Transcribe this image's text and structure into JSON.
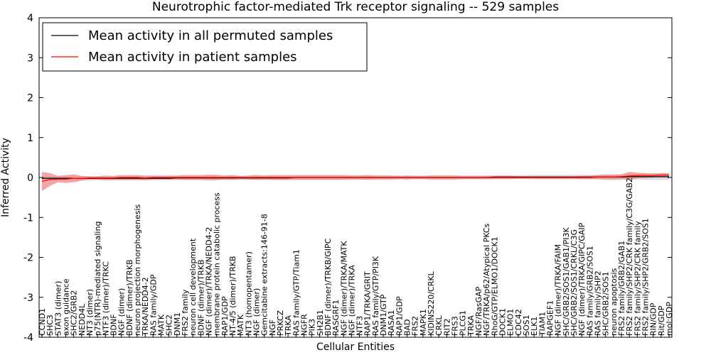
{
  "chart_data": {
    "type": "line",
    "title": "Neurotrophic factor-mediated Trk receptor signaling -- 529 samples",
    "xlabel": "Cellular Entities",
    "ylabel": "Inferred Activity",
    "ylim": [
      -4,
      4
    ],
    "yticks": [
      -4,
      -3,
      -2,
      -1,
      0,
      1,
      2,
      3,
      4
    ],
    "legend_position": "top-left",
    "colors": {
      "permuted": "#000000",
      "patient": "#ff0000",
      "band_patient": "#f08080",
      "band_permuted": "#bbbbbb"
    },
    "categories": [
      "CCND1",
      "SHC3",
      "STAT3 (dimer)",
      "axon guidance",
      "SHC2/GRB2",
      "NEDD4L",
      "NT3 (dimer)",
      "p75(NTR)-mediated signaling",
      "NTF3 (dimer)/TRKC",
      "BDNF",
      "NGF (dimer)",
      "BDNF (dimer)/TRKB",
      "neuron projection morphogenesis",
      "TRKA/NEDD4-2",
      "RAS family/GDP",
      "MATK",
      "SHC2",
      "DNM1",
      "FRS2 family",
      "neuron cell development",
      "BDNF (dimer)/TRKB",
      "NGF (dimer)/TRKA/NEDD4-2",
      "membrane protein catabolic process",
      "RAP1/GDP",
      "NT-4/5 (dimer)/TRKB",
      "MATK",
      "NT3 (homopentamer)",
      "NGF (dimer)",
      "Gemcitabine extracts:146-91-8",
      "NGF",
      "PRKCZ",
      "TRKA",
      "RAS family/GTP/Tiam1",
      "NGFR",
      "PIK3",
      "SH2B1",
      "BDNF (dimer)/TRKB/GIPC",
      "RASGRF1",
      "NGF (dimer)/TRKA/MATK",
      "NGF (dimer)/TRKA",
      "NTF3",
      "RAP1/TRKA/GRIT",
      "RAS family/GTP/PI3K",
      "DNM1/GTP",
      "RASA1",
      "RAP1/GDP",
      "BAD",
      "FRS2",
      "MAPK1",
      "KIDINS220/CRKL",
      "CRKL",
      "RIT2",
      "FRS3",
      "PLCG1",
      "TRKA",
      "NGF/RasGAP",
      "NGF/TRKA/p62/Atypical PKCs",
      "RhoG/GTP/ELMO1/DOCK1",
      "DOCK1",
      "ELMO1",
      "CDC42",
      "SOS1",
      "ELK1",
      "TIAM1",
      "RAPGEF1",
      "NGF (dimer)/TRKA/FAIM",
      "SHC/GRB2/SOS1/GAB1/PI3K",
      "SHC/GRB2/SOS1/CRKL/C3G",
      "NGF (dimer)/TRKA/GIPC/GAIP",
      "RAS family/GRB2/SOS1",
      "RAS family/SHP2",
      "SHC/GRB2/SOS1",
      "neuron apoptosis",
      "FRS2 family/GRB2/GAB1",
      "FRS2 family/SHP2/CRK family/C3G/GAB2",
      "FRS2 family/SHP2/CRK family",
      "FRS2 family/SHP2/GRB2/SOS1",
      "RIN/GDP",
      "Rit/GDP",
      "mol:GDP"
    ],
    "series": [
      {
        "name": "Mean activity in all permuted samples",
        "values": [
          -0.02,
          -0.02,
          -0.02,
          -0.02,
          -0.02,
          -0.02,
          -0.02,
          -0.02,
          -0.02,
          -0.02,
          -0.02,
          -0.02,
          -0.02,
          -0.02,
          -0.02,
          -0.02,
          -0.02,
          -0.01,
          -0.01,
          -0.01,
          -0.01,
          -0.01,
          -0.01,
          -0.01,
          -0.01,
          -0.01,
          -0.01,
          -0.01,
          -0.01,
          -0.01,
          -0.01,
          -0.01,
          0.0,
          0.0,
          0.0,
          0.0,
          0.0,
          0.0,
          0.0,
          0.0,
          0.0,
          0.0,
          0.0,
          0.0,
          0.0,
          0.0,
          0.0,
          0.0,
          0.0,
          0.0,
          0.0,
          0.0,
          0.0,
          0.0,
          0.0,
          0.0,
          0.0,
          0.01,
          0.01,
          0.01,
          0.01,
          0.01,
          0.01,
          0.01,
          0.01,
          0.01,
          0.01,
          0.01,
          0.01,
          0.01,
          0.01,
          0.01,
          0.01,
          0.01,
          0.02,
          0.02,
          0.02,
          0.02,
          0.02,
          0.02
        ]
      },
      {
        "name": "Mean activity in patient samples",
        "values": [
          -0.1,
          -0.05,
          -0.04,
          -0.04,
          -0.02,
          -0.02,
          -0.01,
          -0.01,
          -0.01,
          -0.01,
          0.0,
          0.0,
          0.0,
          -0.01,
          0.0,
          0.0,
          0.0,
          0.0,
          0.0,
          0.0,
          0.0,
          0.0,
          0.0,
          0.0,
          0.0,
          0.0,
          0.0,
          0.0,
          0.0,
          0.0,
          0.0,
          0.0,
          0.0,
          0.0,
          0.0,
          0.0,
          0.0,
          0.0,
          0.0,
          0.0,
          0.0,
          0.0,
          0.0,
          0.0,
          0.0,
          0.0,
          0.0,
          0.0,
          0.0,
          0.0,
          0.0,
          0.0,
          0.0,
          0.0,
          0.0,
          0.0,
          0.0,
          0.0,
          0.0,
          0.0,
          0.0,
          0.0,
          0.0,
          0.0,
          0.0,
          0.0,
          0.0,
          0.0,
          0.0,
          0.0,
          0.01,
          0.01,
          0.01,
          0.02,
          0.04,
          0.05,
          0.05,
          0.05,
          0.06,
          0.06
        ]
      }
    ],
    "bands": {
      "patient_halfwidth": [
        0.24,
        0.16,
        0.08,
        0.1,
        0.1,
        0.06,
        0.04,
        0.04,
        0.06,
        0.05,
        0.06,
        0.06,
        0.06,
        0.06,
        0.05,
        0.05,
        0.05,
        0.05,
        0.06,
        0.06,
        0.06,
        0.07,
        0.07,
        0.05,
        0.06,
        0.04,
        0.05,
        0.06,
        0.05,
        0.06,
        0.06,
        0.06,
        0.06,
        0.06,
        0.06,
        0.06,
        0.06,
        0.06,
        0.06,
        0.05,
        0.05,
        0.06,
        0.05,
        0.05,
        0.05,
        0.04,
        0.05,
        0.04,
        0.04,
        0.05,
        0.05,
        0.05,
        0.05,
        0.04,
        0.04,
        0.04,
        0.04,
        0.04,
        0.04,
        0.04,
        0.03,
        0.03,
        0.03,
        0.03,
        0.03,
        0.03,
        0.03,
        0.03,
        0.04,
        0.04,
        0.05,
        0.06,
        0.06,
        0.06,
        0.1,
        0.07,
        0.06,
        0.05,
        0.05,
        0.05
      ],
      "permuted_halfwidth": [
        0.05,
        0.05,
        0.05,
        0.05,
        0.05,
        0.05,
        0.05,
        0.05,
        0.05,
        0.05,
        0.05,
        0.05,
        0.05,
        0.05,
        0.05,
        0.05,
        0.05,
        0.05,
        0.05,
        0.05,
        0.05,
        0.05,
        0.05,
        0.05,
        0.05,
        0.05,
        0.05,
        0.05,
        0.05,
        0.05,
        0.05,
        0.05,
        0.05,
        0.05,
        0.05,
        0.05,
        0.05,
        0.05,
        0.05,
        0.05,
        0.05,
        0.05,
        0.05,
        0.05,
        0.05,
        0.05,
        0.05,
        0.05,
        0.05,
        0.05,
        0.05,
        0.05,
        0.05,
        0.05,
        0.05,
        0.05,
        0.05,
        0.05,
        0.05,
        0.05,
        0.05,
        0.05,
        0.06,
        0.06,
        0.06,
        0.06,
        0.06,
        0.06,
        0.06,
        0.06,
        0.06,
        0.07,
        0.07,
        0.07,
        0.07,
        0.07,
        0.08,
        0.08,
        0.08,
        0.08
      ]
    }
  }
}
